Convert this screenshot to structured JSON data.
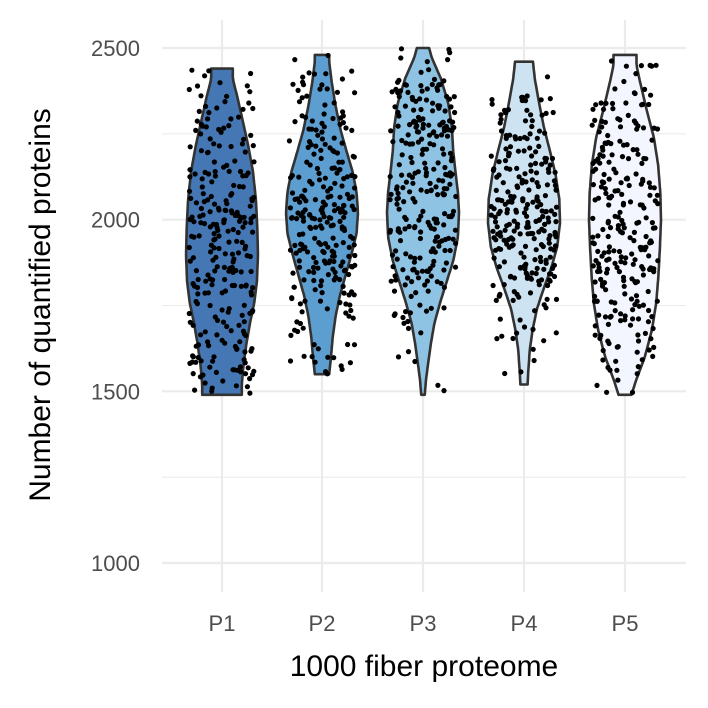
{
  "chart_data": {
    "type": "violin",
    "xlabel": "1000 fiber proteome",
    "ylabel": "Number of quantified proteins",
    "ylim": [
      920,
      2530
    ],
    "y_ticks": [
      1000,
      1500,
      2000,
      2500
    ],
    "y_tick_labels": [
      "1000",
      "1500",
      "2000",
      "2500"
    ],
    "grid": true,
    "categories": [
      "P1",
      "P2",
      "P3",
      "P4",
      "P5"
    ],
    "fill_colors": [
      "#4477b4",
      "#5d9ed1",
      "#8fc3e4",
      "#cde3f2",
      "#f3f6fe"
    ],
    "series": [
      {
        "category": "P1",
        "min": 1490,
        "max": 2440,
        "n_points": 260,
        "density": [
          [
            1490,
            0.55
          ],
          [
            1520,
            0.55
          ],
          [
            1580,
            0.6
          ],
          [
            1640,
            0.68
          ],
          [
            1700,
            0.78
          ],
          [
            1760,
            0.9
          ],
          [
            1820,
            0.97
          ],
          [
            1900,
            1.0
          ],
          [
            1980,
            0.98
          ],
          [
            2060,
            0.94
          ],
          [
            2140,
            0.86
          ],
          [
            2220,
            0.72
          ],
          [
            2300,
            0.55
          ],
          [
            2360,
            0.42
          ],
          [
            2410,
            0.3
          ],
          [
            2440,
            0.3
          ]
        ]
      },
      {
        "category": "P2",
        "min": 1550,
        "max": 2480,
        "n_points": 260,
        "density": [
          [
            1550,
            0.2
          ],
          [
            1600,
            0.25
          ],
          [
            1660,
            0.3
          ],
          [
            1720,
            0.38
          ],
          [
            1780,
            0.5
          ],
          [
            1840,
            0.66
          ],
          [
            1900,
            0.82
          ],
          [
            1960,
            0.96
          ],
          [
            2020,
            1.0
          ],
          [
            2080,
            0.96
          ],
          [
            2140,
            0.85
          ],
          [
            2200,
            0.68
          ],
          [
            2260,
            0.52
          ],
          [
            2330,
            0.38
          ],
          [
            2400,
            0.27
          ],
          [
            2460,
            0.2
          ],
          [
            2480,
            0.2
          ]
        ]
      },
      {
        "category": "P3",
        "min": 1490,
        "max": 2500,
        "n_points": 260,
        "density": [
          [
            1490,
            0.05
          ],
          [
            1530,
            0.08
          ],
          [
            1580,
            0.14
          ],
          [
            1640,
            0.22
          ],
          [
            1700,
            0.32
          ],
          [
            1760,
            0.48
          ],
          [
            1820,
            0.66
          ],
          [
            1880,
            0.84
          ],
          [
            1950,
            0.97
          ],
          [
            2020,
            1.0
          ],
          [
            2080,
            0.97
          ],
          [
            2140,
            0.9
          ],
          [
            2200,
            0.84
          ],
          [
            2270,
            0.8
          ],
          [
            2340,
            0.7
          ],
          [
            2410,
            0.5
          ],
          [
            2470,
            0.25
          ],
          [
            2500,
            0.17
          ]
        ]
      },
      {
        "category": "P4",
        "min": 1520,
        "max": 2460,
        "n_points": 260,
        "density": [
          [
            1520,
            0.1
          ],
          [
            1560,
            0.12
          ],
          [
            1620,
            0.16
          ],
          [
            1680,
            0.24
          ],
          [
            1740,
            0.36
          ],
          [
            1800,
            0.55
          ],
          [
            1860,
            0.76
          ],
          [
            1920,
            0.92
          ],
          [
            1990,
            1.0
          ],
          [
            2060,
            0.98
          ],
          [
            2130,
            0.88
          ],
          [
            2200,
            0.72
          ],
          [
            2270,
            0.55
          ],
          [
            2340,
            0.42
          ],
          [
            2410,
            0.3
          ],
          [
            2460,
            0.25
          ]
        ]
      },
      {
        "category": "P5",
        "min": 1490,
        "max": 2480,
        "n_points": 260,
        "density": [
          [
            1490,
            0.18
          ],
          [
            1530,
            0.3
          ],
          [
            1600,
            0.55
          ],
          [
            1680,
            0.75
          ],
          [
            1760,
            0.87
          ],
          [
            1840,
            0.93
          ],
          [
            1920,
            0.97
          ],
          [
            2000,
            1.0
          ],
          [
            2080,
            0.98
          ],
          [
            2160,
            0.92
          ],
          [
            2240,
            0.8
          ],
          [
            2320,
            0.6
          ],
          [
            2400,
            0.42
          ],
          [
            2450,
            0.32
          ],
          [
            2480,
            0.32
          ]
        ]
      }
    ]
  }
}
